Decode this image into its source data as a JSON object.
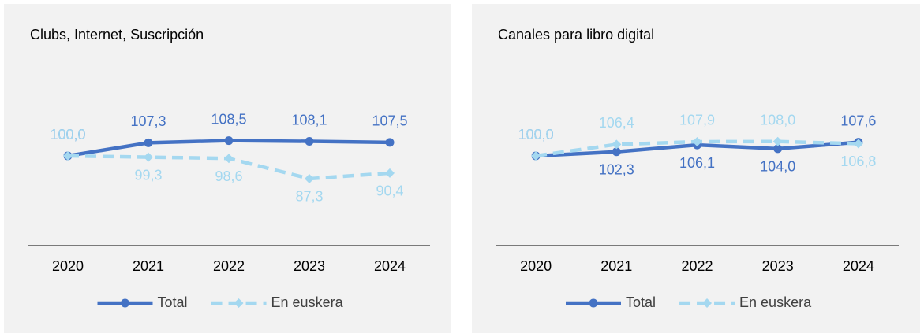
{
  "chart_data": [
    {
      "type": "line",
      "title": "Clubs, Internet, Suscripción",
      "categories": [
        "2020",
        "2021",
        "2022",
        "2023",
        "2024"
      ],
      "series": [
        {
          "name": "Total",
          "color": "#4472c4",
          "values": [
            100.0,
            107.3,
            108.5,
            108.1,
            107.5
          ],
          "value_labels": [
            "100,0",
            "107,3",
            "108,5",
            "108,1",
            "107,5"
          ]
        },
        {
          "name": "En euskera",
          "color": "#a4d8f0",
          "values": [
            100.0,
            99.3,
            98.6,
            87.3,
            90.4
          ],
          "value_labels": [
            "100,0",
            "99,3",
            "98,6",
            "87,3",
            "90,4"
          ]
        }
      ],
      "ylim": [
        50,
        150
      ]
    },
    {
      "type": "line",
      "title": "Canales para libro digital",
      "categories": [
        "2020",
        "2021",
        "2022",
        "2023",
        "2024"
      ],
      "series": [
        {
          "name": "Total",
          "color": "#4472c4",
          "values": [
            100.0,
            102.3,
            106.1,
            104.0,
            107.6
          ],
          "value_labels": [
            "100,0",
            "102,3",
            "106,1",
            "104,0",
            "107,6"
          ]
        },
        {
          "name": "En euskera",
          "color": "#a4d8f0",
          "values": [
            100.0,
            106.4,
            107.9,
            108.0,
            106.8
          ],
          "value_labels": [
            "100,0",
            "106,4",
            "107,9",
            "108,0",
            "106,8"
          ]
        }
      ],
      "ylim": [
        50,
        150
      ]
    }
  ]
}
